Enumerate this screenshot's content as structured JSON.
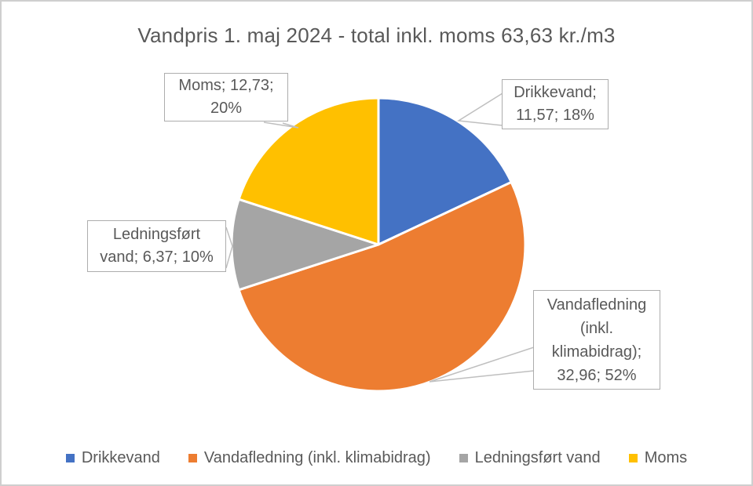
{
  "chart_data": {
    "type": "pie",
    "title": "Vandpris 1. maj 2024 - total inkl. moms 63,63 kr./m3",
    "total_label": "63,63 kr./m3",
    "start_angle_deg": 0,
    "direction": "clockwise",
    "legend_position": "bottom",
    "grid": false,
    "slices": [
      {
        "name": "Drikkevand",
        "value": 11.57,
        "value_display": "11,57",
        "percent": 18,
        "color": "#4472C4",
        "label_lines": [
          "Drikkevand;",
          "11,57; 18%"
        ]
      },
      {
        "name": "Vandafledning (inkl. klimabidrag)",
        "value": 32.96,
        "value_display": "32,96",
        "percent": 52,
        "color": "#ED7D31",
        "label_lines": [
          "Vandafledning",
          "(inkl.",
          "klimabidrag);",
          "32,96; 52%"
        ]
      },
      {
        "name": "Ledningsført vand",
        "value": 6.37,
        "value_display": "6,37",
        "percent": 10,
        "color": "#A5A5A5",
        "label_lines": [
          "Ledningsført",
          "vand; 6,37; 10%"
        ]
      },
      {
        "name": "Moms",
        "value": 12.73,
        "value_display": "12,73",
        "percent": 20,
        "color": "#FFC000",
        "label_lines": [
          "Moms; 12,73;",
          "20%"
        ]
      }
    ]
  },
  "colors": {
    "text": "#595959",
    "leader_line": "#BFBFBF",
    "slice_border": "#FFFFFF",
    "frame_border": "#CFCFCF"
  }
}
